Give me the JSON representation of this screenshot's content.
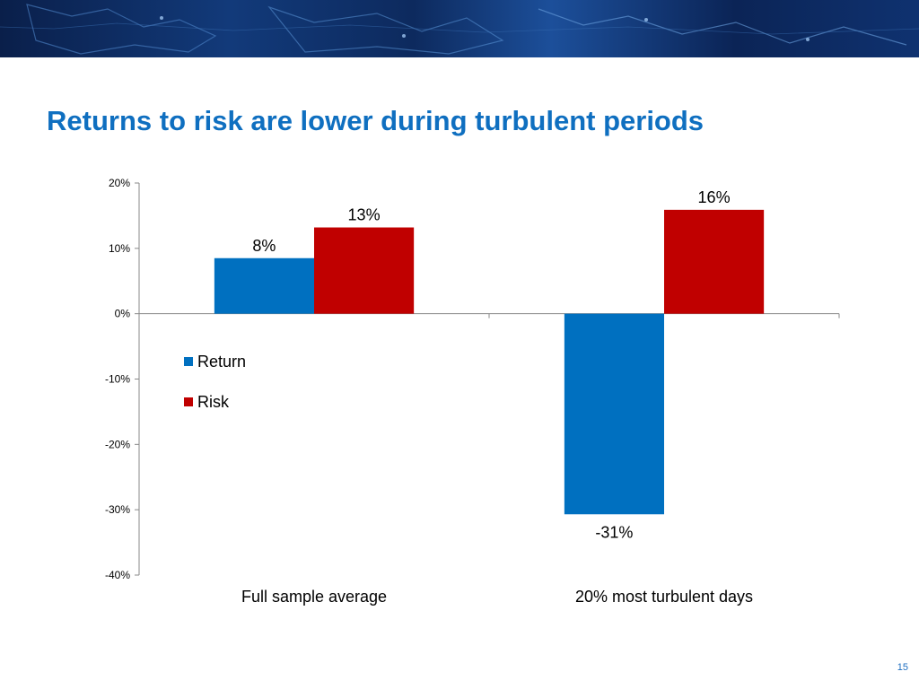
{
  "slide": {
    "title": "Returns to risk are lower during turbulent periods",
    "page_number": "15"
  },
  "colors": {
    "title": "#0f6fc0",
    "return": "#0070c0",
    "risk": "#c00000",
    "axis": "#888888",
    "header": "#0d2a5e"
  },
  "header": {
    "background": "world-map-banner"
  },
  "chart_data": {
    "type": "bar",
    "categories": [
      "Full sample average",
      "20% most turbulent days"
    ],
    "series": [
      {
        "name": "Return",
        "values": [
          8.5,
          -30.7
        ],
        "labels": [
          "8%",
          "-31%"
        ],
        "color": "#0070c0"
      },
      {
        "name": "Risk",
        "values": [
          13.2,
          15.9
        ],
        "labels": [
          "13%",
          "16%"
        ],
        "color": "#c00000"
      }
    ],
    "ylim": [
      -40,
      20
    ],
    "yticks": [
      20,
      10,
      0,
      -10,
      -20,
      -30,
      -40
    ],
    "ytick_labels": [
      "20%",
      "10%",
      "0%",
      "-10%",
      "-20%",
      "-30%",
      "-40%"
    ],
    "title": "",
    "xlabel": "",
    "ylabel": "",
    "grid": false,
    "legend": {
      "placement": "left-middle",
      "entries": [
        "Return",
        "Risk"
      ]
    }
  }
}
